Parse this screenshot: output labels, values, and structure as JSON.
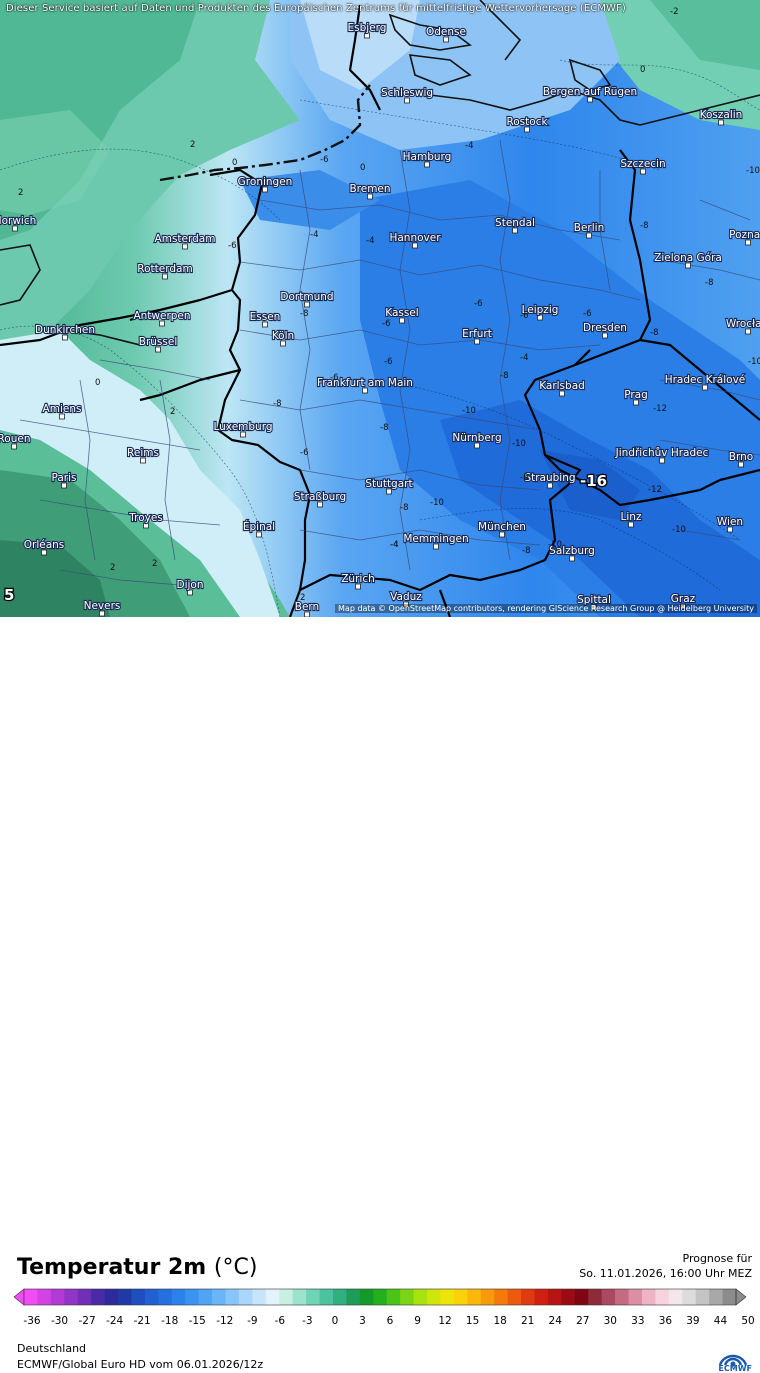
{
  "banner": "Dieser Service basiert auf Daten und Produkten des Europäischen Zentrums für mittelfristige Wettervorhersage (ECMWF)",
  "attribution": "Map data © OpenStreetMap contributors, rendering GIScience Research Group @ Heidelberg University",
  "title": "Temperatur 2m",
  "unit": "(°C)",
  "forecast_label": "Prognose für",
  "forecast_time": "So. 11.01.2026, 16:00 Uhr MEZ",
  "region": "Deutschland",
  "model": "ECMWF/Global Euro HD vom  06.01.2026/12z",
  "logo_text": "ECMWF",
  "colorbar": {
    "ticks": [
      "-36",
      "-30",
      "-27",
      "-24",
      "-21",
      "-18",
      "-15",
      "-12",
      "-9",
      "-6",
      "-3",
      "0",
      "3",
      "6",
      "9",
      "12",
      "15",
      "18",
      "21",
      "24",
      "27",
      "30",
      "33",
      "36",
      "39",
      "44",
      "50"
    ],
    "colors": [
      "#f24cf5",
      "#d243e6",
      "#b23bd6",
      "#9035c6",
      "#6f2fb6",
      "#4a2aa6",
      "#2d2a9a",
      "#1f3aa6",
      "#1f4fbf",
      "#215fd2",
      "#2470e0",
      "#2b82ea",
      "#3b93f0",
      "#4fa4f4",
      "#6ab5f7",
      "#88c5fa",
      "#a8d6fc",
      "#c6e5fd",
      "#e2f2fe",
      "#c8efe2",
      "#9ce3cc",
      "#6fd3b6",
      "#4cc39e",
      "#2fb07f",
      "#1f9c5a",
      "#129b2a",
      "#24b01e",
      "#4bc41a",
      "#7bd514",
      "#a8e20f",
      "#cfe60c",
      "#efe409",
      "#fbd209",
      "#fbb80a",
      "#f99a0a",
      "#f47a0b",
      "#ec5a0d",
      "#e03a10",
      "#cf2012",
      "#b81414",
      "#9a0b14",
      "#7d0612",
      "#8e2a3a",
      "#a94a60",
      "#c46b83",
      "#dc8ea5",
      "#eeb3c4",
      "#f6d3dd",
      "#f4e6ea",
      "#dcdcdc",
      "#c4c4c4",
      "#a8a8a8",
      "#8c8c8c"
    ]
  },
  "cities": [
    {
      "name": "Esbjerg"
    },
    {
      "name": "Odense"
    },
    {
      "name": "Schleswig"
    },
    {
      "name": "Bergen auf Rügen"
    },
    {
      "name": "Rostock"
    },
    {
      "name": "Koszalin"
    },
    {
      "name": "Hamburg"
    },
    {
      "name": "Szczecin"
    },
    {
      "name": "Groningen"
    },
    {
      "name": "Bremen"
    },
    {
      "name": "Amsterdam"
    },
    {
      "name": "Hannover"
    },
    {
      "name": "Stendal"
    },
    {
      "name": "Berlin"
    },
    {
      "name": "Zielona Góra"
    },
    {
      "name": "Rotterdam"
    },
    {
      "name": "Dortmund"
    },
    {
      "name": "Leipzig"
    },
    {
      "name": "Antwerpen"
    },
    {
      "name": "Essen"
    },
    {
      "name": "Kassel"
    },
    {
      "name": "Dresden"
    },
    {
      "name": "Dunkirchen"
    },
    {
      "name": "Köln"
    },
    {
      "name": "Erfurt"
    },
    {
      "name": "Brüssel"
    },
    {
      "name": "Frankfurt am Main"
    },
    {
      "name": "Karlsbad"
    },
    {
      "name": "Hradec Králové"
    },
    {
      "name": "Prag"
    },
    {
      "name": "Amiens"
    },
    {
      "name": "Luxemburg"
    },
    {
      "name": "Nürnberg"
    },
    {
      "name": "Jindřichův Hradec"
    },
    {
      "name": "Brno"
    },
    {
      "name": "Reims"
    },
    {
      "name": "Paris"
    },
    {
      "name": "Stuttgart"
    },
    {
      "name": "Straubing"
    },
    {
      "name": "Straßburg"
    },
    {
      "name": "Troyes"
    },
    {
      "name": "Linz"
    },
    {
      "name": "Wien"
    },
    {
      "name": "Épinal"
    },
    {
      "name": "München"
    },
    {
      "name": "Orléans"
    },
    {
      "name": "Memmingen"
    },
    {
      "name": "Salzburg"
    },
    {
      "name": "Dijon"
    },
    {
      "name": "Zürich"
    },
    {
      "name": "Vaduz"
    },
    {
      "name": "Nevers"
    },
    {
      "name": "Bern"
    },
    {
      "name": "Graz"
    },
    {
      "name": "Spittal"
    },
    {
      "name": "Wrocław"
    },
    {
      "name": "Poznań"
    },
    {
      "name": "Rouen"
    },
    {
      "name": "Norwich"
    }
  ],
  "isolines": [
    "-2",
    "0",
    "2",
    "0",
    "2",
    "-6",
    "-4",
    "-6",
    "-4",
    "-6",
    "-6",
    "-6",
    "-6",
    "-8",
    "-8",
    "-10",
    "-10",
    "-12",
    "-12",
    "-10",
    "-10",
    "-8",
    "-10",
    "-6",
    "-4",
    "-8",
    "-8",
    "-10",
    "-12",
    "-10",
    "-8",
    "-6",
    "-8",
    "-6",
    "0",
    "2",
    "2",
    "2",
    "-4",
    "-8",
    "-6",
    "-8",
    "0",
    "-4",
    "2",
    "-4"
  ],
  "min_marker": "-16",
  "corner_value": "5"
}
